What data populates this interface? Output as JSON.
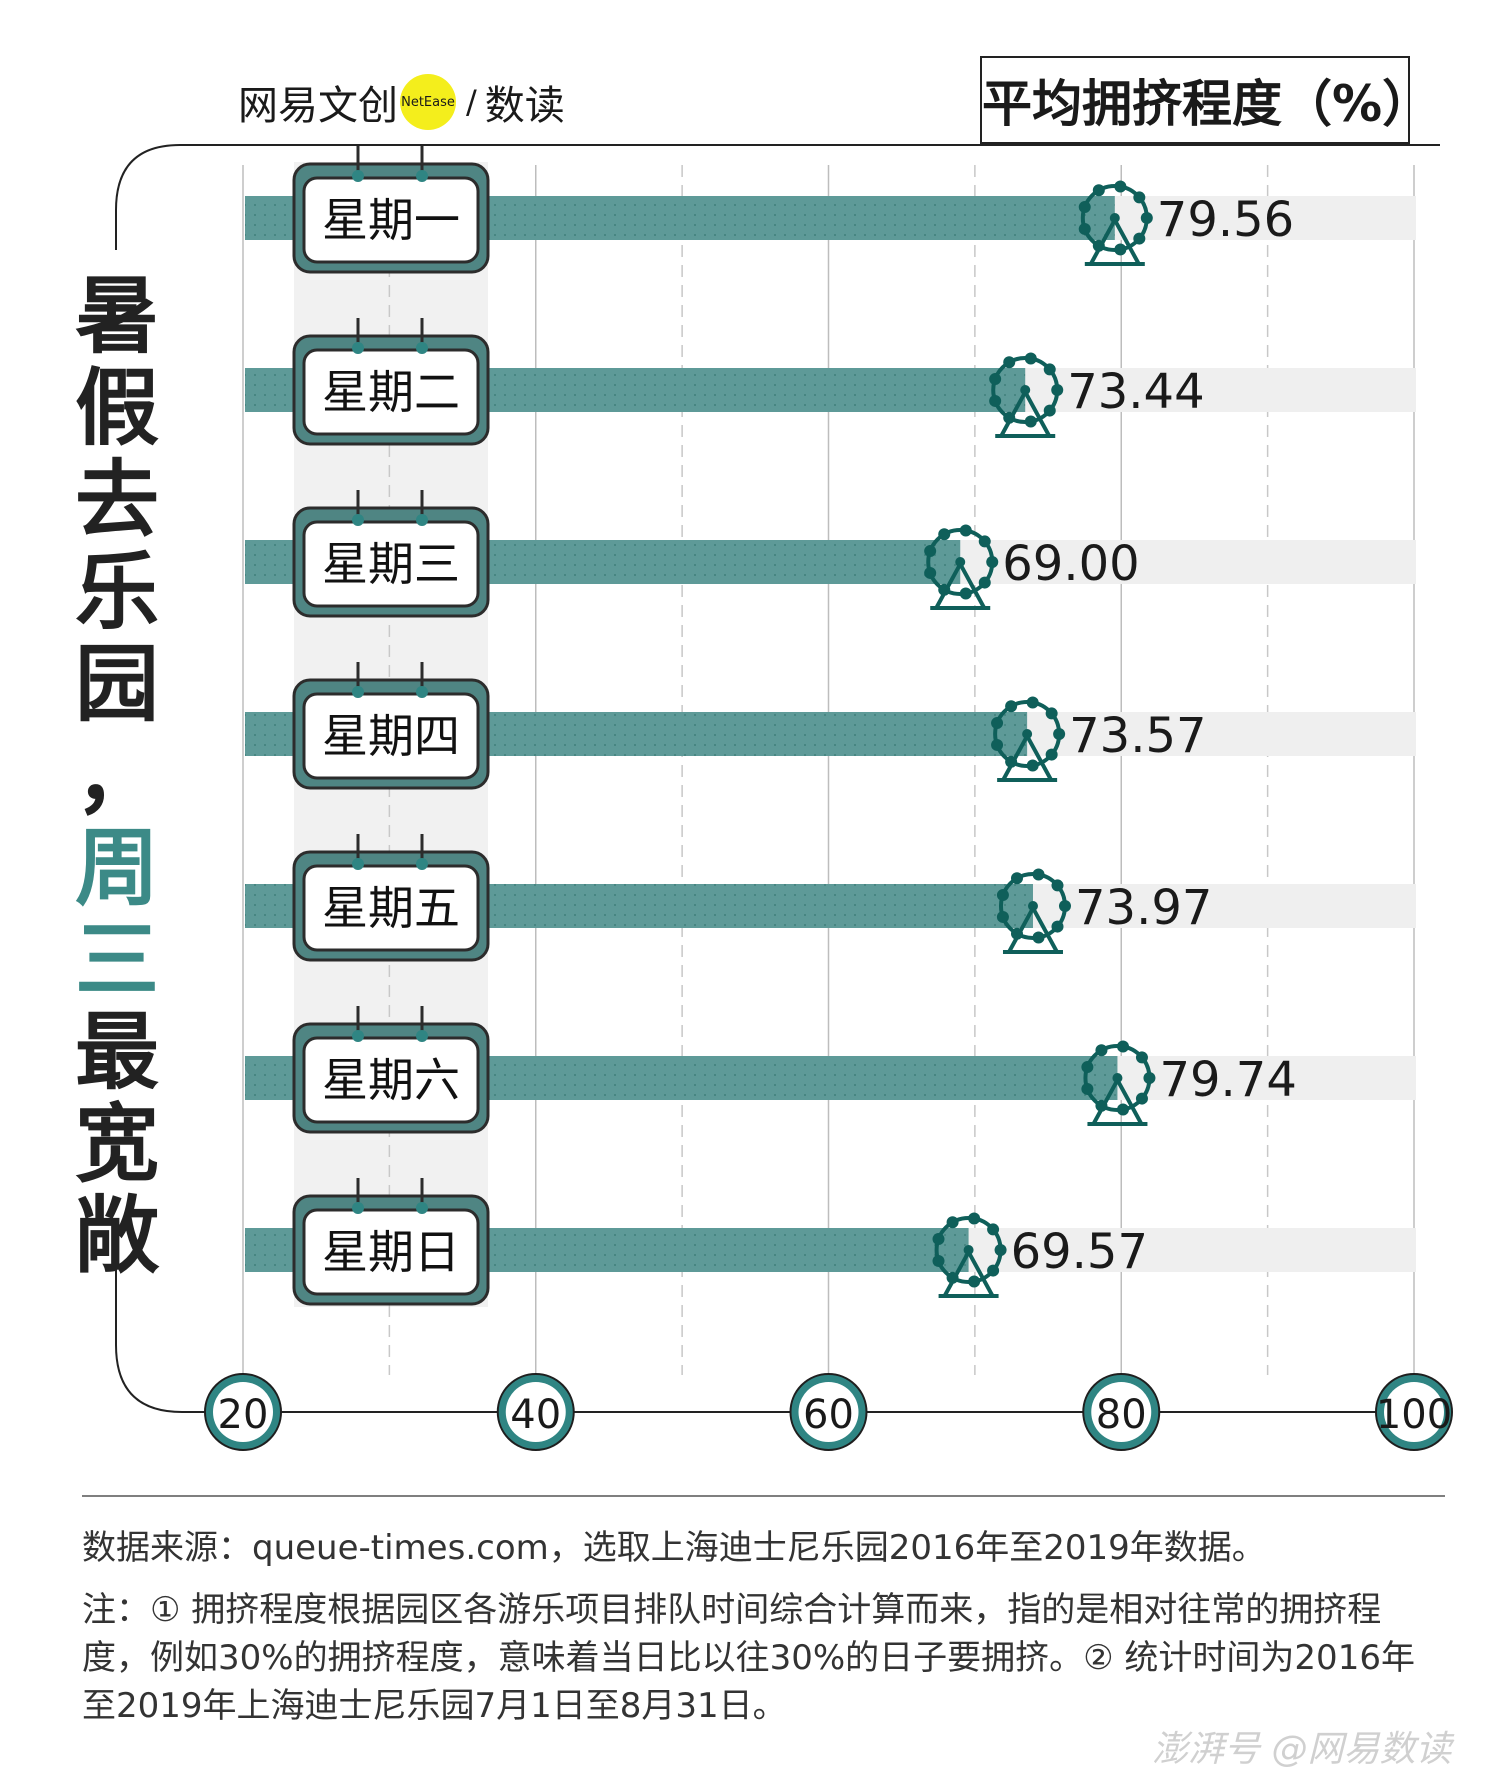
{
  "brand": {
    "name": "网易文创",
    "badge": "NetEase",
    "sub": "数读"
  },
  "legend": {
    "label": "平均拥挤程度（%）"
  },
  "side_title": {
    "line1": [
      "暑",
      "假",
      "去",
      "乐",
      "园",
      "，"
    ],
    "line2_accent": [
      "周",
      "三"
    ],
    "line2_rest": [
      "最",
      "宽",
      "敞"
    ]
  },
  "chart_data": {
    "type": "bar",
    "orientation": "horizontal",
    "categories": [
      "星期一",
      "星期二",
      "星期三",
      "星期四",
      "星期五",
      "星期六",
      "星期日"
    ],
    "values": [
      79.56,
      73.44,
      69.0,
      73.57,
      73.97,
      79.74,
      69.57
    ],
    "value_labels": [
      "79.56",
      "73.44",
      "69.00",
      "73.57",
      "73.97",
      "79.74",
      "69.57"
    ],
    "xlim": [
      20,
      100
    ],
    "xticks": [
      20,
      40,
      60,
      80,
      100
    ],
    "grid": true,
    "colors": {
      "bar": "#5e9a98",
      "accent": "#3c8a87",
      "track": "#efefef",
      "dark": "#0f5f5a",
      "badge_fill": "#2f8583"
    }
  },
  "footer": {
    "source": "数据来源：queue-times.com，选取上海迪士尼乐园2016年至2019年数据。",
    "note": "注：① 拥挤程度根据园区各游乐项目排队时间综合计算而来，指的是相对往常的拥挤程度，例如30%的拥挤程度，意味着当日比以往30%的日子要拥挤。② 统计时间为2016年至2019年上海迪士尼乐园7月1日至8月31日。",
    "watermark": "澎湃号 @网易数读"
  }
}
